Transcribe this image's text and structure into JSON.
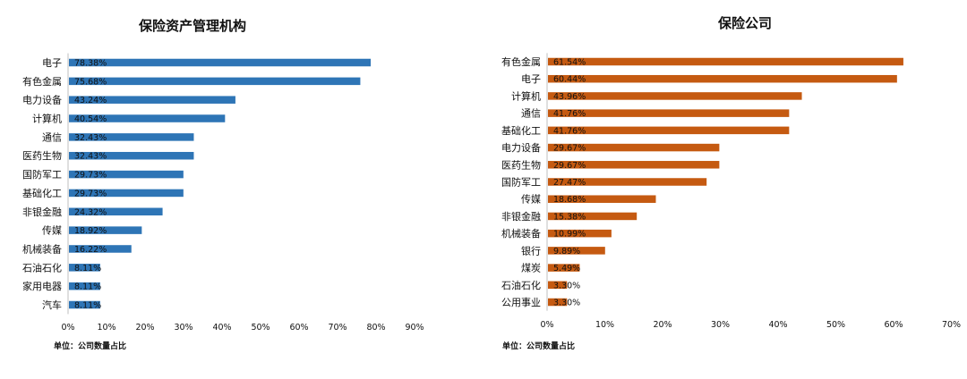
{
  "chart_data": [
    {
      "type": "bar",
      "orientation": "horizontal",
      "title": "保险资产管理机构",
      "categories": [
        "电子",
        "有色金属",
        "电力设备",
        "计算机",
        "通信",
        "医药生物",
        "国防军工",
        "基础化工",
        "非银金融",
        "传媒",
        "机械装备",
        "石油石化",
        "家用电器",
        "汽车"
      ],
      "values": [
        78.38,
        75.68,
        43.24,
        40.54,
        32.43,
        32.43,
        29.73,
        29.73,
        24.32,
        18.92,
        16.22,
        8.11,
        8.11,
        8.11
      ],
      "data_labels": [
        "78.38%",
        "75.68%",
        "43.24%",
        "40.54%",
        "32.43%",
        "32.43%",
        "29.73%",
        "29.73%",
        "24.32%",
        "18.92%",
        "16.22%",
        "8.11%",
        "8.11%",
        "8.11%"
      ],
      "xlim": [
        0,
        90
      ],
      "xticks": [
        0,
        10,
        20,
        30,
        40,
        50,
        60,
        70,
        80,
        90
      ],
      "xtick_labels": [
        "0%",
        "10%",
        "20%",
        "30%",
        "40%",
        "50%",
        "60%",
        "70%",
        "80%",
        "90%"
      ],
      "color": "#2E75B6",
      "note": "单位：公司数量占比"
    },
    {
      "type": "bar",
      "orientation": "horizontal",
      "title": "保险公司",
      "categories": [
        "有色金属",
        "电子",
        "计算机",
        "通信",
        "基础化工",
        "电力设备",
        "医药生物",
        "国防军工",
        "传媒",
        "非银金融",
        "机械装备",
        "银行",
        "煤炭",
        "石油石化",
        "公用事业"
      ],
      "values": [
        61.54,
        60.44,
        43.96,
        41.76,
        41.76,
        29.67,
        29.67,
        27.47,
        18.68,
        15.38,
        10.99,
        9.89,
        5.49,
        3.3,
        3.3
      ],
      "data_labels": [
        "61.54%",
        "60.44%",
        "43.96%",
        "41.76%",
        "41.76%",
        "29.67%",
        "29.67%",
        "27.47%",
        "18.68%",
        "15.38%",
        "10.99%",
        "9.89%",
        "5.49%",
        "3.30%",
        "3.30%"
      ],
      "xlim": [
        0,
        70
      ],
      "xticks": [
        0,
        10,
        20,
        30,
        40,
        50,
        60,
        70
      ],
      "xtick_labels": [
        "0%",
        "10%",
        "20%",
        "30%",
        "40%",
        "50%",
        "60%",
        "70%"
      ],
      "color": "#C55A11",
      "note": "单位：公司数量占比"
    }
  ]
}
